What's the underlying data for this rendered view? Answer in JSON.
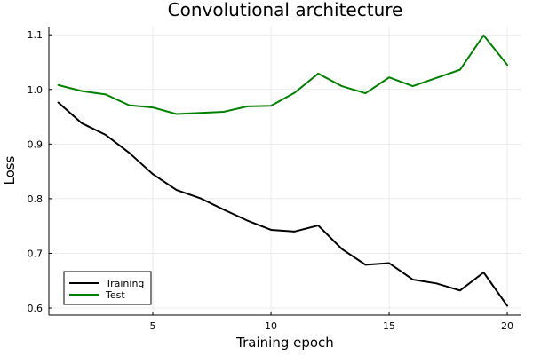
{
  "chart_data": {
    "type": "line",
    "title": "Convolutional architecture",
    "xlabel": "Training epoch",
    "ylabel": "Loss",
    "xlim": [
      0.6,
      20.6
    ],
    "ylim": [
      0.587,
      1.115
    ],
    "xticks": [
      5,
      10,
      15,
      20
    ],
    "yticks": [
      0.6,
      0.7,
      0.8,
      0.9,
      1.0,
      1.1
    ],
    "ytick_labels": [
      "0.6",
      "0.7",
      "0.8",
      "0.9",
      "1.0",
      "1.1"
    ],
    "grid": true,
    "legend_position": "bottom-left",
    "x": [
      1,
      2,
      3,
      4,
      5,
      6,
      7,
      8,
      9,
      10,
      11,
      12,
      13,
      14,
      15,
      16,
      17,
      18,
      19,
      20
    ],
    "series": [
      {
        "name": "Training",
        "color": "#000000",
        "values": [
          0.976,
          0.938,
          0.917,
          0.884,
          0.845,
          0.816,
          0.801,
          0.78,
          0.76,
          0.743,
          0.74,
          0.751,
          0.708,
          0.679,
          0.682,
          0.652,
          0.645,
          0.632,
          0.665,
          0.604
        ]
      },
      {
        "name": "Test",
        "color": "#008000",
        "values": [
          1.008,
          0.997,
          0.991,
          0.971,
          0.967,
          0.955,
          0.957,
          0.959,
          0.969,
          0.97,
          0.994,
          1.029,
          1.006,
          0.993,
          1.022,
          1.006,
          1.021,
          1.036,
          1.099,
          1.045
        ]
      }
    ]
  }
}
